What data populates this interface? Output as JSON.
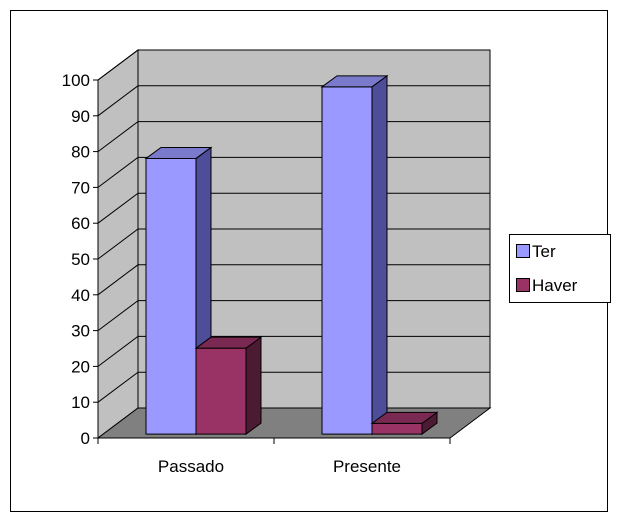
{
  "chart_data": {
    "type": "bar",
    "three_d": true,
    "categories": [
      "Passado",
      "Presente"
    ],
    "series": [
      {
        "name": "Ter",
        "values": [
          77,
          97
        ]
      },
      {
        "name": "Haver",
        "values": [
          24,
          3
        ]
      }
    ],
    "yticks": [
      0,
      10,
      20,
      30,
      40,
      50,
      60,
      70,
      80,
      90,
      100
    ],
    "ylim": [
      0,
      100
    ],
    "grid": true,
    "legend": "right",
    "title": "",
    "xlabel": "",
    "ylabel": ""
  },
  "colors": {
    "ter_front": "#9999ff",
    "ter_side": "#4d4d99",
    "ter_top": "#7a7acc",
    "haver_front": "#993366",
    "haver_side": "#4d1a33",
    "haver_top": "#7a2952",
    "wall": "#c0c0c0",
    "floor": "#808080",
    "grid": "#000000"
  }
}
